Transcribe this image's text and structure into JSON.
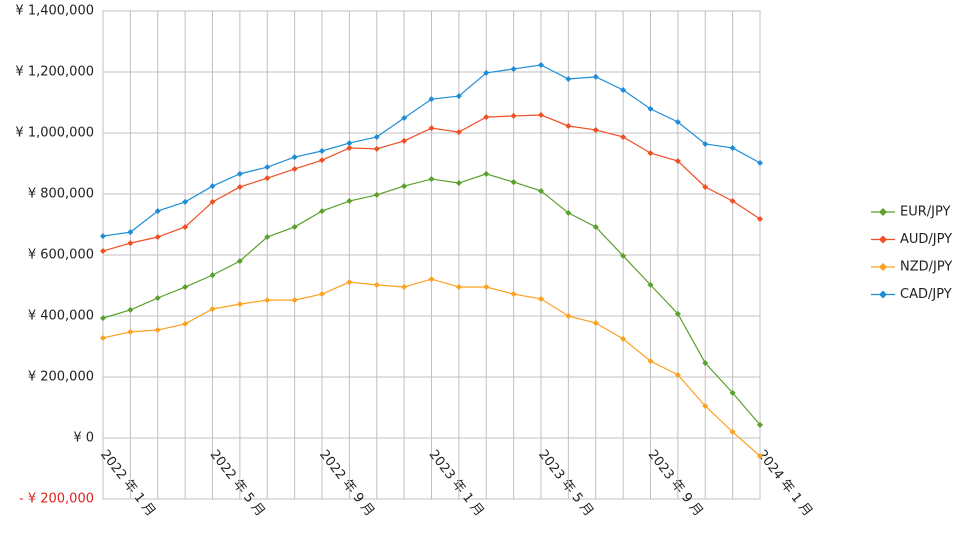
{
  "chart_data": {
    "type": "line",
    "categories": [
      "2022 年 1 月",
      null,
      null,
      null,
      "2022 年 5 月",
      null,
      null,
      null,
      "2022 年 9 月",
      null,
      null,
      null,
      "2023 年 1 月",
      null,
      null,
      null,
      "2023 年 5 月",
      null,
      null,
      null,
      "2023 年 9 月",
      null,
      null,
      null,
      "2024 年 1 月"
    ],
    "series": [
      {
        "name": "EUR/JPY",
        "color": "#5aa02c",
        "values": [
          393000,
          420000,
          459000,
          495000,
          534000,
          580000,
          659000,
          692000,
          744000,
          777000,
          797000,
          826000,
          849000,
          836000,
          866000,
          839000,
          810000,
          738000,
          692000,
          597000,
          502000,
          407000,
          246000,
          148000,
          43000
        ]
      },
      {
        "name": "AUD/JPY",
        "color": "#f04e23",
        "values": [
          613000,
          639000,
          659000,
          692000,
          774000,
          823000,
          852000,
          882000,
          911000,
          951000,
          948000,
          974000,
          1016000,
          1003000,
          1052000,
          1056000,
          1059000,
          1023000,
          1010000,
          987000,
          934000,
          908000,
          823000,
          777000,
          718000
        ]
      },
      {
        "name": "NZD/JPY",
        "color": "#fca020",
        "values": [
          328000,
          348000,
          354000,
          374000,
          423000,
          439000,
          452000,
          452000,
          472000,
          511000,
          502000,
          495000,
          521000,
          495000,
          495000,
          472000,
          456000,
          400000,
          377000,
          325000,
          252000,
          207000,
          105000,
          20000,
          -59000
        ]
      },
      {
        "name": "CAD/JPY",
        "color": "#1f8dd6",
        "values": [
          662000,
          675000,
          744000,
          774000,
          826000,
          866000,
          888000,
          921000,
          941000,
          967000,
          987000,
          1049000,
          1111000,
          1121000,
          1197000,
          1210000,
          1223000,
          1177000,
          1184000,
          1141000,
          1079000,
          1036000,
          964000,
          951000,
          902000
        ]
      }
    ],
    "ylim": [
      -200000,
      1400000
    ],
    "yticks": [
      {
        "value": -200000,
        "label": "- ¥ 200,000"
      },
      {
        "value": 0,
        "label": "¥ 0"
      },
      {
        "value": 200000,
        "label": "¥ 200,000"
      },
      {
        "value": 400000,
        "label": "¥ 400,000"
      },
      {
        "value": 600000,
        "label": "¥ 600,000"
      },
      {
        "value": 800000,
        "label": "¥ 800,000"
      },
      {
        "value": 1000000,
        "label": "¥ 1,000,000"
      },
      {
        "value": 1200000,
        "label": "¥ 1,200,000"
      },
      {
        "value": 1400000,
        "label": "¥ 1,400,000"
      }
    ],
    "negative_label_color": "#e02020",
    "grid": true,
    "legend": "right"
  }
}
